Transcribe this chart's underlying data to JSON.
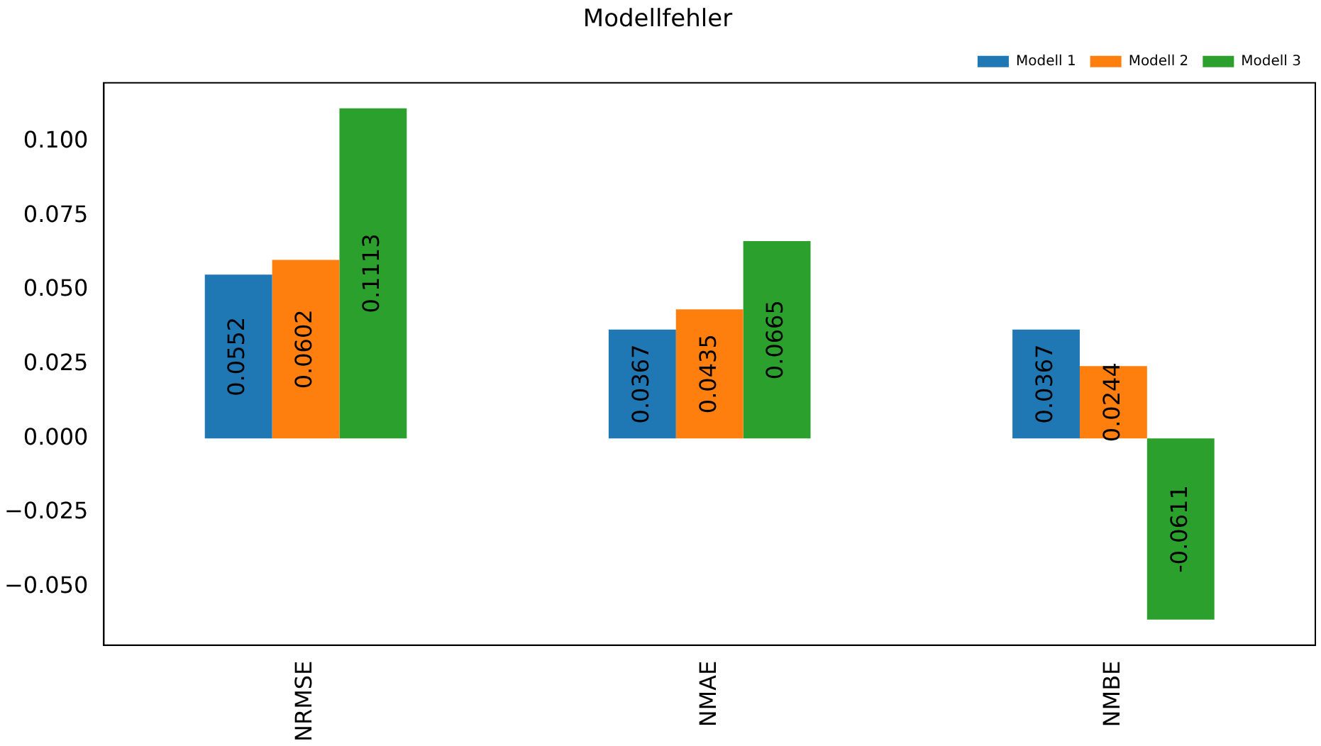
{
  "chart_data": {
    "type": "bar",
    "title": "Modellfehler",
    "categories": [
      "NRMSE",
      "NMAE",
      "NMBE"
    ],
    "series": [
      {
        "name": "Modell 1",
        "color": "#1f77b4",
        "values": [
          0.0552,
          0.0367,
          0.0367
        ]
      },
      {
        "name": "Modell 2",
        "color": "#ff7f0e",
        "values": [
          0.0602,
          0.0435,
          0.0244
        ]
      },
      {
        "name": "Modell 3",
        "color": "#2ca02c",
        "values": [
          0.1113,
          0.0665,
          -0.0611
        ]
      }
    ],
    "ylim": [
      -0.0697,
      0.1199
    ],
    "yticks": [
      {
        "value": -0.05,
        "label": "−0.050"
      },
      {
        "value": -0.025,
        "label": "−0.025"
      },
      {
        "value": 0,
        "label": "0.000"
      },
      {
        "value": 0.025,
        "label": "0.025"
      },
      {
        "value": 0.05,
        "label": "0.050"
      },
      {
        "value": 0.075,
        "label": "0.075"
      },
      {
        "value": 0.1,
        "label": "0.100"
      }
    ],
    "data_labels": true,
    "grid": false,
    "legend": "top right"
  }
}
